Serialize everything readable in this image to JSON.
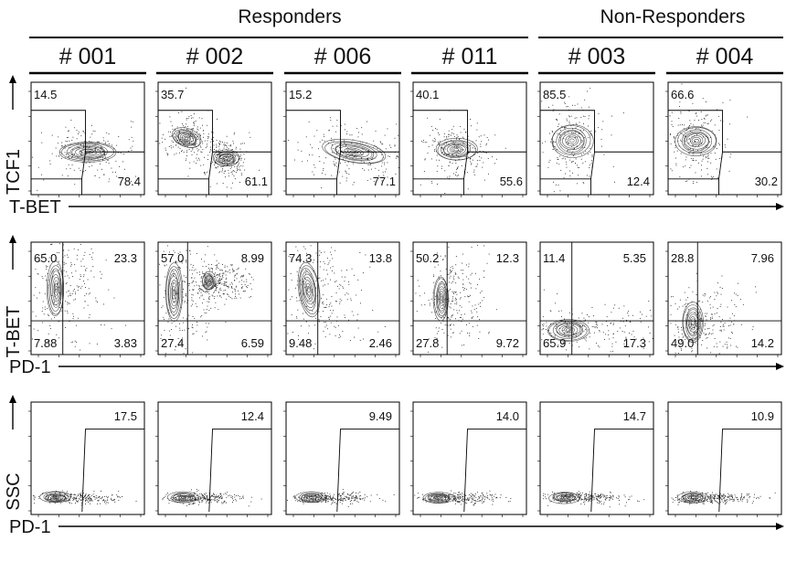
{
  "groups": [
    {
      "label": "Responders",
      "patients": [
        "# 001",
        "# 002",
        "# 006",
        "# 011"
      ]
    },
    {
      "label": "Non-Responders",
      "patients": [
        "# 003",
        "# 004"
      ]
    }
  ],
  "rows": [
    {
      "id": "tcf1-vs-tbet",
      "ylabel": "TCF1",
      "xlabel": "T-BET",
      "gate": "two-gate"
    },
    {
      "id": "tbet-vs-pd1",
      "ylabel": "T-BET",
      "xlabel": "PD-1",
      "gate": "quadrant"
    },
    {
      "id": "ssc-vs-pd1",
      "ylabel": "SSC",
      "xlabel": "PD-1",
      "gate": "single"
    }
  ],
  "chart_data": {
    "type": "scatter",
    "description_note": "",
    "panels": {
      "tcf1-vs-tbet": [
        {
          "patient": "# 001",
          "upper_left": "14.5",
          "lower_right": "78.4"
        },
        {
          "patient": "# 002",
          "upper_left": "35.7",
          "lower_right": "61.1"
        },
        {
          "patient": "# 006",
          "upper_left": "15.2",
          "lower_right": "77.1"
        },
        {
          "patient": "# 011",
          "upper_left": "40.1",
          "lower_right": "55.6"
        },
        {
          "patient": "# 003",
          "upper_left": "85.5",
          "lower_right": "12.4"
        },
        {
          "patient": "# 004",
          "upper_left": "66.6",
          "lower_right": "30.2"
        }
      ],
      "tbet-vs-pd1": [
        {
          "patient": "# 001",
          "ul": "65.0",
          "ur": "23.3",
          "ll": "7.88",
          "lr": "3.83"
        },
        {
          "patient": "# 002",
          "ul": "57.0",
          "ur": "8.99",
          "ll": "27.4",
          "lr": "6.59"
        },
        {
          "patient": "# 006",
          "ul": "74.3",
          "ur": "13.8",
          "ll": "9.48",
          "lr": "2.46"
        },
        {
          "patient": "# 011",
          "ul": "50.2",
          "ur": "12.3",
          "ll": "27.8",
          "lr": "9.72"
        },
        {
          "patient": "# 003",
          "ul": "11.4",
          "ur": "5.35",
          "ll": "65.9",
          "lr": "17.3"
        },
        {
          "patient": "# 004",
          "ul": "28.8",
          "ur": "7.96",
          "ll": "49.0",
          "lr": "14.2"
        }
      ],
      "ssc-vs-pd1": [
        {
          "patient": "# 001",
          "gate": "17.5"
        },
        {
          "patient": "# 002",
          "gate": "12.4"
        },
        {
          "patient": "# 006",
          "gate": "9.49"
        },
        {
          "patient": "# 011",
          "gate": "14.0"
        },
        {
          "patient": "# 003",
          "gate": "14.7"
        },
        {
          "patient": "# 004",
          "gate": "10.9"
        }
      ]
    }
  }
}
